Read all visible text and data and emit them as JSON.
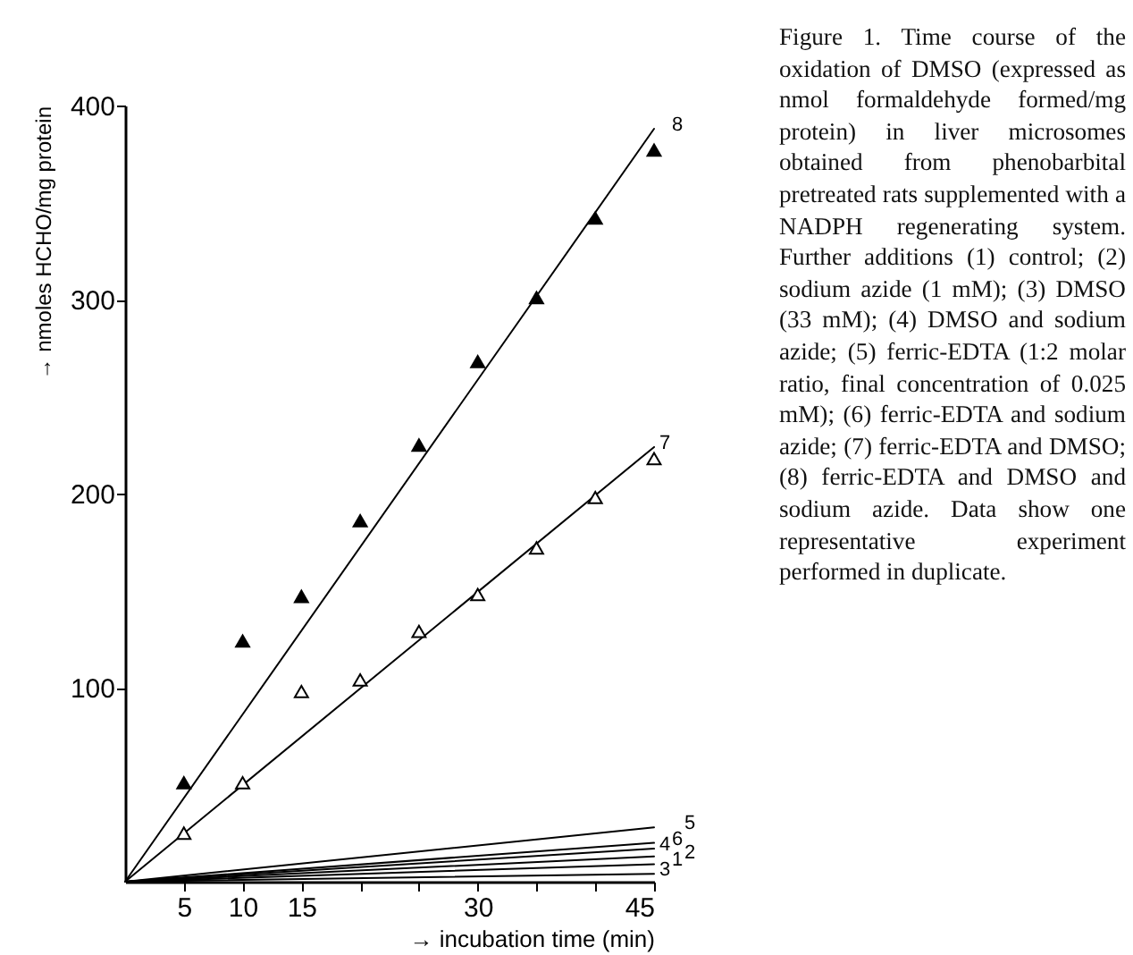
{
  "chart_data": {
    "type": "line",
    "xlabel": "→ incubation time (min)",
    "ylabel": "→ nmoles HCHO/mg protein",
    "xlim": [
      0,
      45
    ],
    "ylim": [
      0,
      400
    ],
    "xticks": [
      5,
      10,
      15,
      {
        "value": 20,
        "label": null
      },
      {
        "value": 25,
        "label": null
      },
      30,
      {
        "value": 35,
        "label": null
      },
      {
        "value": 40,
        "label": null
      },
      45
    ],
    "yticks": [
      100,
      200,
      300,
      400
    ],
    "grid": false,
    "line_style": "solid",
    "series": [
      {
        "name": "1",
        "color": "#000000",
        "x": [
          0,
          45
        ],
        "values": [
          0,
          9
        ]
      },
      {
        "name": "2",
        "color": "#000000",
        "x": [
          0,
          45
        ],
        "values": [
          0,
          13
        ]
      },
      {
        "name": "3",
        "color": "#000000",
        "x": [
          0,
          45
        ],
        "values": [
          0,
          4
        ]
      },
      {
        "name": "4",
        "color": "#000000",
        "x": [
          0,
          45
        ],
        "values": [
          0,
          17
        ]
      },
      {
        "name": "5",
        "color": "#000000",
        "x": [
          0,
          45
        ],
        "values": [
          0,
          28
        ]
      },
      {
        "name": "6",
        "color": "#000000",
        "x": [
          0,
          45
        ],
        "values": [
          0,
          20
        ]
      },
      {
        "name": "7",
        "color": "#000000",
        "x": [
          0,
          45
        ],
        "values": [
          0,
          224
        ]
      },
      {
        "name": "8",
        "color": "#000000",
        "x": [
          0,
          45
        ],
        "values": [
          0,
          388
        ]
      },
      {
        "type": "scatter",
        "marker": "triangle",
        "color": "#ffffff",
        "x": [
          5,
          10,
          15,
          20,
          25,
          30,
          35,
          40,
          45
        ],
        "values": [
          25,
          51,
          98,
          104,
          129,
          148,
          172,
          198,
          218
        ]
      },
      {
        "type": "scatter",
        "marker": "triangle",
        "color": "#000000",
        "x": [
          5,
          10,
          15,
          20,
          25,
          30,
          35,
          40,
          45
        ],
        "values": [
          51,
          124,
          147,
          186,
          225,
          268,
          301,
          342,
          377
        ]
      }
    ],
    "annotations": [
      "Figure 1. Time course of the oxidation of DMSO (expressed as nmol formaldehyde formed/mg protein) in liver microsomes obtained from phenobarbital pretreated rats supplemented with a NADPH regenerating system. Further additions (1) control; (2) sodium azide (1 mM); (3) DMSO (33 mM); (4) DMSO and sodium azide; (5) ferric-EDTA (1:2 molar ratio, final concentration of 0.025 mM); (6) ferric-EDTA and sodium azide; (7) ferric-EDTA and DMSO; (8) ferric-EDTA and DMSO and sodium azide. Data show one representative experiment performed in duplicate."
    ]
  }
}
